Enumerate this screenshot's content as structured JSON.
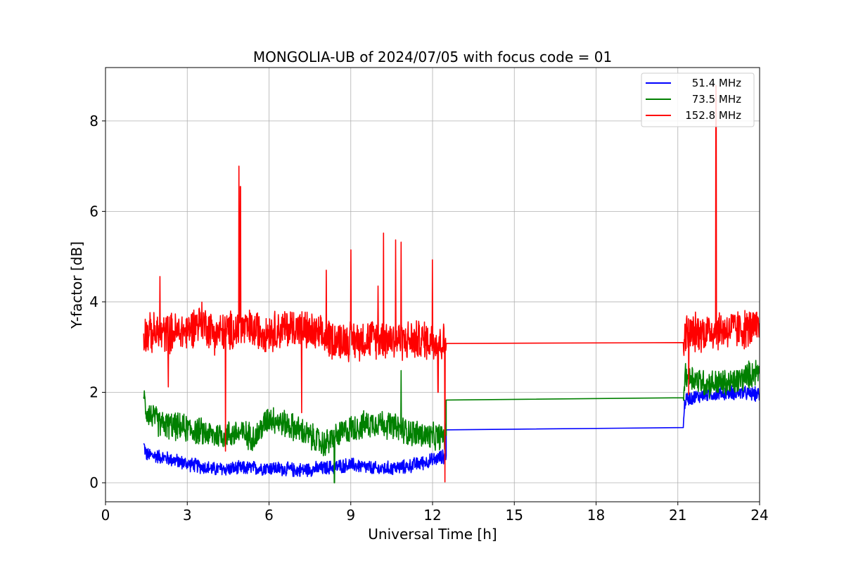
{
  "chart_data": {
    "type": "line",
    "title": "MONGOLIA-UB of 2024/07/05 with focus code = 01",
    "xlabel": "Universal Time [h]",
    "ylabel": "Y-factor [dB]",
    "xlim": [
      0,
      24
    ],
    "ylim": [
      -0.42,
      9.18
    ],
    "xticks": [
      0,
      3,
      6,
      9,
      12,
      15,
      18,
      21,
      24
    ],
    "yticks": [
      0,
      2,
      4,
      6,
      8
    ],
    "grid": true,
    "legend_position": "top-right",
    "series": [
      {
        "name": "51.4 MHz",
        "color": "#0000ff",
        "noise": 0.18,
        "x": [
          1.4,
          1.5,
          2.0,
          3.0,
          4.0,
          5.0,
          6.0,
          7.0,
          8.0,
          9.0,
          10.0,
          11.0,
          12.0,
          12.5,
          12.5,
          21.2,
          21.25,
          21.3,
          22.0,
          23.0,
          24.0
        ],
        "y": [
          0.85,
          0.62,
          0.58,
          0.42,
          0.3,
          0.32,
          0.33,
          0.28,
          0.32,
          0.4,
          0.3,
          0.35,
          0.5,
          0.6,
          1.17,
          1.22,
          1.75,
          1.85,
          1.95,
          2.0,
          1.95
        ],
        "spikes": []
      },
      {
        "name": "73.5 MHz",
        "color": "#008000",
        "noise": 0.35,
        "x": [
          1.4,
          1.5,
          2.0,
          3.0,
          4.0,
          5.0,
          5.5,
          6.0,
          7.0,
          8.0,
          9.0,
          10.0,
          11.0,
          12.0,
          12.5,
          12.5,
          21.2,
          21.25,
          21.3,
          22.0,
          23.0,
          24.0
        ],
        "y": [
          1.9,
          1.6,
          1.3,
          1.2,
          1.05,
          1.1,
          1.0,
          1.45,
          1.2,
          0.85,
          1.2,
          1.35,
          1.15,
          1.0,
          1.05,
          1.83,
          1.88,
          2.3,
          2.4,
          2.2,
          2.2,
          2.5
        ],
        "spikes": [
          [
            10.85,
            2.48
          ],
          [
            8.4,
            0.0
          ]
        ]
      },
      {
        "name": "152.8 MHz",
        "color": "#ff0000",
        "noise": 0.5,
        "x": [
          1.4,
          1.5,
          2.0,
          3.0,
          3.5,
          4.0,
          5.0,
          6.0,
          7.0,
          8.0,
          9.0,
          10.0,
          11.0,
          12.0,
          12.4,
          12.5,
          12.5,
          21.2,
          21.25,
          21.3,
          22.0,
          23.0,
          24.0
        ],
        "y": [
          3.3,
          3.3,
          3.3,
          3.35,
          3.6,
          3.3,
          3.4,
          3.35,
          3.45,
          3.2,
          3.15,
          3.2,
          3.15,
          3.15,
          3.1,
          3.05,
          3.08,
          3.1,
          3.2,
          3.3,
          3.35,
          3.4,
          3.4
        ],
        "spikes": [
          [
            4.9,
            7.0
          ],
          [
            4.95,
            6.55
          ],
          [
            10.2,
            5.52
          ],
          [
            10.65,
            5.37
          ],
          [
            10.85,
            5.32
          ],
          [
            12.0,
            4.93
          ],
          [
            9.0,
            5.15
          ],
          [
            8.1,
            4.7
          ],
          [
            10.0,
            4.35
          ],
          [
            2.0,
            4.56
          ],
          [
            4.4,
            0.7
          ],
          [
            7.2,
            1.55
          ],
          [
            2.3,
            2.12
          ],
          [
            12.45,
            0.02
          ],
          [
            12.2,
            2.0
          ],
          [
            22.4,
            8.78
          ],
          [
            21.4,
            1.95
          ]
        ]
      }
    ]
  }
}
